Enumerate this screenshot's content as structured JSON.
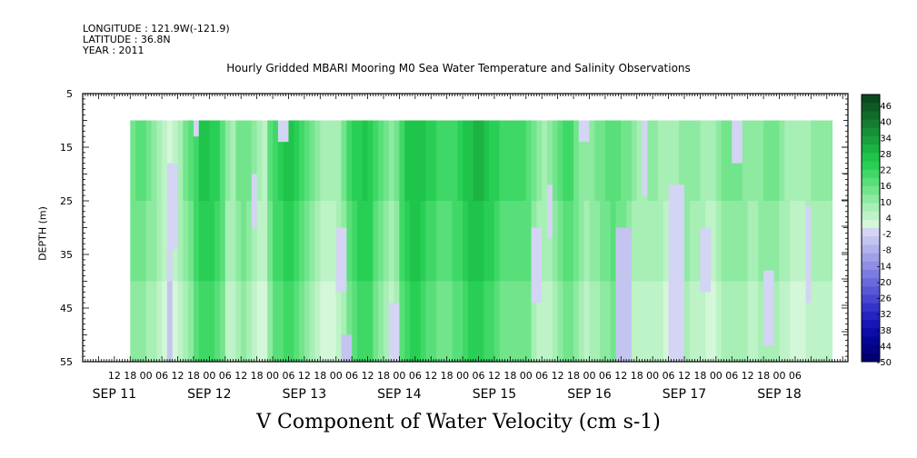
{
  "header": {
    "longitude": "LONGITUDE : 121.9W(-121.9)",
    "latitude": "LATITUDE : 36.8N",
    "year": "YEAR : 2011"
  },
  "chart_data": {
    "type": "heatmap",
    "title": "Hourly Gridded MBARI Mooring M0 Sea Water Temperature and Salinity Observations",
    "xlabel": "V Component of Water Velocity (cm s-1)",
    "ylabel": "DEPTH (m)",
    "ylim": [
      5,
      55
    ],
    "y_inverted": true,
    "yticks": [
      5,
      15,
      25,
      35,
      45,
      55
    ],
    "data_depth_range": [
      10,
      55
    ],
    "x_range_hours": [
      -12,
      278
    ],
    "data_start_hour": 6,
    "hour_tick_labels": [
      {
        "h": 0,
        "t": "12"
      },
      {
        "h": 6,
        "t": "18"
      },
      {
        "h": 12,
        "t": "00"
      },
      {
        "h": 18,
        "t": "06"
      },
      {
        "h": 24,
        "t": "12"
      },
      {
        "h": 30,
        "t": "18"
      },
      {
        "h": 36,
        "t": "00"
      },
      {
        "h": 42,
        "t": "06"
      },
      {
        "h": 48,
        "t": "12"
      },
      {
        "h": 54,
        "t": "18"
      },
      {
        "h": 60,
        "t": "00"
      },
      {
        "h": 66,
        "t": "06"
      },
      {
        "h": 72,
        "t": "12"
      },
      {
        "h": 78,
        "t": "18"
      },
      {
        "h": 84,
        "t": "00"
      },
      {
        "h": 90,
        "t": "06"
      },
      {
        "h": 96,
        "t": "12"
      },
      {
        "h": 102,
        "t": "18"
      },
      {
        "h": 108,
        "t": "00"
      },
      {
        "h": 114,
        "t": "06"
      },
      {
        "h": 120,
        "t": "12"
      },
      {
        "h": 126,
        "t": "18"
      },
      {
        "h": 132,
        "t": "00"
      },
      {
        "h": 138,
        "t": "06"
      },
      {
        "h": 144,
        "t": "12"
      },
      {
        "h": 150,
        "t": "18"
      },
      {
        "h": 156,
        "t": "00"
      },
      {
        "h": 162,
        "t": "06"
      },
      {
        "h": 168,
        "t": "12"
      },
      {
        "h": 174,
        "t": "18"
      },
      {
        "h": 180,
        "t": "00"
      },
      {
        "h": 186,
        "t": "06"
      },
      {
        "h": 192,
        "t": "12"
      },
      {
        "h": 198,
        "t": "18"
      },
      {
        "h": 204,
        "t": "00"
      },
      {
        "h": 210,
        "t": "06"
      },
      {
        "h": 216,
        "t": "12"
      },
      {
        "h": 222,
        "t": "18"
      },
      {
        "h": 228,
        "t": "00"
      },
      {
        "h": 234,
        "t": "06"
      },
      {
        "h": 240,
        "t": "12"
      },
      {
        "h": 246,
        "t": "18"
      },
      {
        "h": 252,
        "t": "00"
      },
      {
        "h": 258,
        "t": "06"
      }
    ],
    "date_labels": [
      {
        "h": 0,
        "t": "SEP 11"
      },
      {
        "h": 36,
        "t": "SEP 12"
      },
      {
        "h": 72,
        "t": "SEP 13"
      },
      {
        "h": 108,
        "t": "SEP 14"
      },
      {
        "h": 144,
        "t": "SEP 15"
      },
      {
        "h": 180,
        "t": "SEP 16"
      },
      {
        "h": 216,
        "t": "SEP 17"
      },
      {
        "h": 252,
        "t": "SEP 18"
      }
    ],
    "colorbar": {
      "labels": [
        "46",
        "40",
        "34",
        "28",
        "22",
        "16",
        "10",
        "4",
        "-2",
        "-8",
        "-14",
        "-20",
        "-26",
        "-32",
        "-38",
        "-44",
        "-50"
      ],
      "right_ticks": [
        "30",
        "20",
        "10",
        "0",
        "-10",
        "-20",
        "-30",
        "-40"
      ],
      "colors_top_to_bottom": [
        "#0b4a1e",
        "#0f5a24",
        "#126b2a",
        "#157d31",
        "#178f37",
        "#19a13d",
        "#1bb343",
        "#1fc44a",
        "#29cf55",
        "#3fd866",
        "#58df79",
        "#72e58c",
        "#8deaa0",
        "#a7efb4",
        "#bdf3c6",
        "#d3f7d8",
        "#d4d4f4",
        "#c4c4f0",
        "#b2b2ec",
        "#a0a0e8",
        "#8e8ee4",
        "#7c7ce0",
        "#6a6adc",
        "#5858d6",
        "#4646d0",
        "#3434c8",
        "#2424bf",
        "#1616b4",
        "#0c0ca6",
        "#060696",
        "#030384",
        "#000070"
      ]
    },
    "vertical_bands": [
      {
        "h": 6,
        "v": 10
      },
      {
        "h": 10,
        "v": 14
      },
      {
        "h": 16,
        "v": 6
      },
      {
        "h": 21,
        "v": -2
      },
      {
        "h": 24,
        "v": 3
      },
      {
        "h": 29,
        "v": 12
      },
      {
        "h": 33,
        "v": 22
      },
      {
        "h": 40,
        "v": 18
      },
      {
        "h": 44,
        "v": 2
      },
      {
        "h": 48,
        "v": 12
      },
      {
        "h": 53,
        "v": 6
      },
      {
        "h": 57,
        "v": 2
      },
      {
        "h": 60,
        "v": 16
      },
      {
        "h": 66,
        "v": 22
      },
      {
        "h": 72,
        "v": 14
      },
      {
        "h": 78,
        "v": 4
      },
      {
        "h": 84,
        "v": 2
      },
      {
        "h": 90,
        "v": 18
      },
      {
        "h": 96,
        "v": 22
      },
      {
        "h": 102,
        "v": 10
      },
      {
        "h": 106,
        "v": 6
      },
      {
        "h": 110,
        "v": 20
      },
      {
        "h": 114,
        "v": 24
      },
      {
        "h": 120,
        "v": 18
      },
      {
        "h": 126,
        "v": 14
      },
      {
        "h": 132,
        "v": 20
      },
      {
        "h": 138,
        "v": 26
      },
      {
        "h": 144,
        "v": 18
      },
      {
        "h": 150,
        "v": 14
      },
      {
        "h": 156,
        "v": 16
      },
      {
        "h": 160,
        "v": 8
      },
      {
        "h": 164,
        "v": 4
      },
      {
        "h": 168,
        "v": 12
      },
      {
        "h": 172,
        "v": 16
      },
      {
        "h": 178,
        "v": 6
      },
      {
        "h": 184,
        "v": 10
      },
      {
        "h": 190,
        "v": 14
      },
      {
        "h": 196,
        "v": 8
      },
      {
        "h": 200,
        "v": 4
      },
      {
        "h": 204,
        "v": 8
      },
      {
        "h": 210,
        "v": 2
      },
      {
        "h": 216,
        "v": 8
      },
      {
        "h": 222,
        "v": 6
      },
      {
        "h": 226,
        "v": 2
      },
      {
        "h": 230,
        "v": 8
      },
      {
        "h": 236,
        "v": 10
      },
      {
        "h": 242,
        "v": 6
      },
      {
        "h": 248,
        "v": 10
      },
      {
        "h": 252,
        "v": 8
      },
      {
        "h": 256,
        "v": 4
      },
      {
        "h": 260,
        "v": 2
      },
      {
        "h": 264,
        "v": 6
      }
    ],
    "negative_patches": [
      {
        "h0": 20,
        "h1": 24,
        "d0": 18,
        "d1": 34,
        "v": -4
      },
      {
        "h0": 30,
        "h1": 32,
        "d0": 10,
        "d1": 13,
        "v": -3
      },
      {
        "h0": 52,
        "h1": 54,
        "d0": 20,
        "d1": 30,
        "v": -2
      },
      {
        "h0": 62,
        "h1": 66,
        "d0": 10,
        "d1": 14,
        "v": -3
      },
      {
        "h0": 84,
        "h1": 88,
        "d0": 30,
        "d1": 42,
        "v": -4
      },
      {
        "h0": 86,
        "h1": 90,
        "d0": 50,
        "d1": 55,
        "v": -5
      },
      {
        "h0": 104,
        "h1": 108,
        "d0": 44,
        "d1": 55,
        "v": -4
      },
      {
        "h0": 158,
        "h1": 162,
        "d0": 30,
        "d1": 44,
        "v": -4
      },
      {
        "h0": 164,
        "h1": 166,
        "d0": 22,
        "d1": 32,
        "v": -3
      },
      {
        "h0": 176,
        "h1": 180,
        "d0": 10,
        "d1": 14,
        "v": -3
      },
      {
        "h0": 190,
        "h1": 196,
        "d0": 30,
        "d1": 55,
        "v": -5
      },
      {
        "h0": 200,
        "h1": 202,
        "d0": 10,
        "d1": 24,
        "v": -3
      },
      {
        "h0": 210,
        "h1": 216,
        "d0": 22,
        "d1": 55,
        "v": -4
      },
      {
        "h0": 222,
        "h1": 226,
        "d0": 30,
        "d1": 42,
        "v": -3
      },
      {
        "h0": 234,
        "h1": 238,
        "d0": 10,
        "d1": 18,
        "v": -3
      },
      {
        "h0": 246,
        "h1": 250,
        "d0": 38,
        "d1": 52,
        "v": -4
      },
      {
        "h0": 262,
        "h1": 264,
        "d0": 26,
        "d1": 44,
        "v": -3
      }
    ]
  }
}
